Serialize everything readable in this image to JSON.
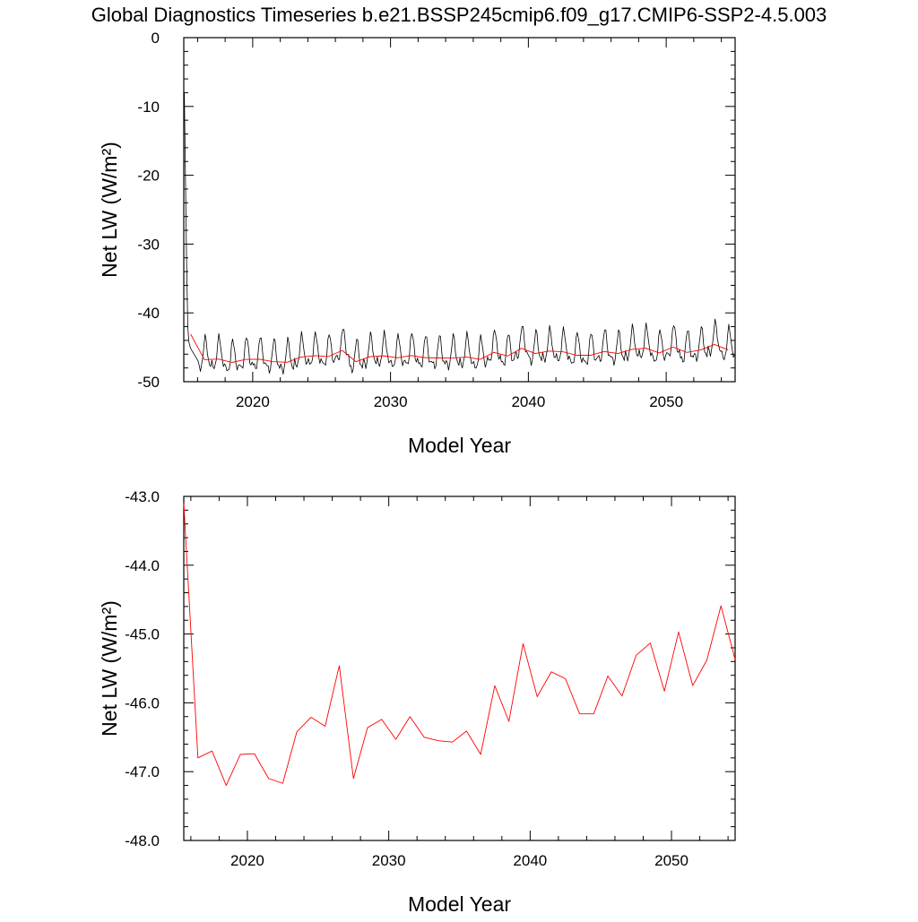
{
  "figure_title": "Global Diagnostics Timeseries b.e21.BSSP245cmip6.f09_g17.CMIP6-SSP2-4.5.003",
  "colors": {
    "monthly": "#000000",
    "annual": "#ff0000",
    "axes": "#000000",
    "background": "#ffffff"
  },
  "chart_data": [
    {
      "type": "line",
      "xlabel": "Model Year",
      "ylabel": "Net LW (W/m²)",
      "xlim": [
        2015,
        2055
      ],
      "ylim": [
        -50,
        0
      ],
      "xticks": [
        2020,
        2030,
        2040,
        2050
      ],
      "yticks": [
        0,
        -10,
        -20,
        -30,
        -40,
        -50
      ],
      "ytick_labels": [
        "0",
        "-10",
        "-20",
        "-30",
        "-40",
        "-50"
      ],
      "grid": false,
      "series": [
        {
          "key": "monthly",
          "color": "#000000",
          "resolution": "monthly",
          "spinup_x": [
            2015.04,
            2015.12,
            2015.2,
            2015.29,
            2015.37,
            2015.45,
            2015.54
          ],
          "spinup_y": [
            -8,
            -20,
            -32,
            -42,
            -44.2,
            -44.9,
            -45.3
          ],
          "month_offsets": [
            -0.5,
            -0.9,
            -1.4,
            -1.0,
            0.3,
            2.2,
            3.4,
            2.8,
            1.2,
            -0.3,
            -0.8,
            -0.7
          ],
          "annual_means": [
            -43.1,
            -46.8,
            -46.7,
            -47.2,
            -46.75,
            -46.74,
            -47.1,
            -47.17,
            -46.42,
            -46.21,
            -46.34,
            -45.46,
            -47.1,
            -46.36,
            -46.24,
            -46.53,
            -46.2,
            -46.5,
            -46.55,
            -46.57,
            -46.41,
            -46.75,
            -45.75,
            -46.27,
            -45.14,
            -45.91,
            -45.55,
            -45.65,
            -46.16,
            -46.16,
            -45.61,
            -45.9,
            -45.31,
            -45.13,
            -45.83,
            -44.97,
            -45.75,
            -45.38,
            -44.59,
            -45.37
          ]
        },
        {
          "key": "annual",
          "color": "#ff0000",
          "resolution": "annual",
          "x": [
            2015.5,
            2016.5,
            2017.5,
            2018.5,
            2019.5,
            2020.5,
            2021.5,
            2022.5,
            2023.5,
            2024.5,
            2025.5,
            2026.5,
            2027.5,
            2028.5,
            2029.5,
            2030.5,
            2031.5,
            2032.5,
            2033.5,
            2034.5,
            2035.5,
            2036.5,
            2037.5,
            2038.5,
            2039.5,
            2040.5,
            2041.5,
            2042.5,
            2043.5,
            2044.5,
            2045.5,
            2046.5,
            2047.5,
            2048.5,
            2049.5,
            2050.5,
            2051.5,
            2052.5,
            2053.5,
            2054.5
          ],
          "values": [
            -43.1,
            -46.8,
            -46.7,
            -47.2,
            -46.75,
            -46.74,
            -47.1,
            -47.17,
            -46.42,
            -46.21,
            -46.34,
            -45.46,
            -47.1,
            -46.36,
            -46.24,
            -46.53,
            -46.2,
            -46.5,
            -46.55,
            -46.57,
            -46.41,
            -46.75,
            -45.75,
            -46.27,
            -45.14,
            -45.91,
            -45.55,
            -45.65,
            -46.16,
            -46.16,
            -45.61,
            -45.9,
            -45.31,
            -45.13,
            -45.83,
            -44.97,
            -45.75,
            -45.38,
            -44.59,
            -45.37
          ]
        }
      ]
    },
    {
      "type": "line",
      "xlabel": "Model Year",
      "ylabel": "Net LW (W/m²)",
      "xlim": [
        2015.5,
        2054.5
      ],
      "ylim": [
        -48,
        -43
      ],
      "xticks": [
        2020,
        2030,
        2040,
        2050
      ],
      "yticks": [
        -43,
        -44,
        -45,
        -46,
        -47,
        -48
      ],
      "ytick_labels": [
        "-43.0",
        "-44.0",
        "-45.0",
        "-46.0",
        "-47.0",
        "-48.0"
      ],
      "grid": false,
      "series": [
        {
          "key": "annual",
          "color": "#ff0000",
          "x": [
            2015.5,
            2016.5,
            2017.5,
            2018.5,
            2019.5,
            2020.5,
            2021.5,
            2022.5,
            2023.5,
            2024.5,
            2025.5,
            2026.5,
            2027.5,
            2028.5,
            2029.5,
            2030.5,
            2031.5,
            2032.5,
            2033.5,
            2034.5,
            2035.5,
            2036.5,
            2037.5,
            2038.5,
            2039.5,
            2040.5,
            2041.5,
            2042.5,
            2043.5,
            2044.5,
            2045.5,
            2046.5,
            2047.5,
            2048.5,
            2049.5,
            2050.5,
            2051.5,
            2052.5,
            2053.5,
            2054.5
          ],
          "values": [
            -43.1,
            -46.8,
            -46.7,
            -47.2,
            -46.75,
            -46.74,
            -47.1,
            -47.17,
            -46.42,
            -46.21,
            -46.34,
            -45.46,
            -47.1,
            -46.36,
            -46.24,
            -46.53,
            -46.2,
            -46.5,
            -46.55,
            -46.57,
            -46.41,
            -46.75,
            -45.75,
            -46.27,
            -45.14,
            -45.91,
            -45.55,
            -45.65,
            -46.16,
            -46.16,
            -45.61,
            -45.9,
            -45.31,
            -45.13,
            -45.83,
            -44.97,
            -45.75,
            -45.38,
            -44.59,
            -45.37
          ]
        }
      ]
    }
  ]
}
